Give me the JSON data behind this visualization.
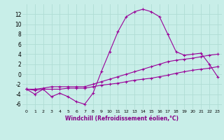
{
  "xlabel": "Windchill (Refroidissement éolien,°C)",
  "bg_color": "#c8eee8",
  "grid_color": "#b0ddd4",
  "line_color": "#990099",
  "hours": [
    0,
    1,
    2,
    3,
    4,
    5,
    6,
    7,
    8,
    9,
    10,
    11,
    12,
    13,
    14,
    15,
    16,
    17,
    18,
    19,
    20,
    21,
    22,
    23
  ],
  "curve1": [
    -3,
    -4,
    -3,
    -4.5,
    -3.8,
    -4.5,
    -5.5,
    -6.0,
    -3.8,
    0.5,
    4.5,
    8.5,
    11.5,
    12.5,
    13.0,
    12.5,
    11.5,
    8.0,
    4.5,
    3.8,
    4.0,
    4.2,
    2.0,
    -0.5
  ],
  "curve2": [
    -3,
    -3.0,
    -2.8,
    -2.5,
    -2.5,
    -2.5,
    -2.5,
    -2.5,
    -2.0,
    -1.5,
    -1.0,
    -0.5,
    0.0,
    0.5,
    1.0,
    1.5,
    2.0,
    2.5,
    2.8,
    3.0,
    3.2,
    3.5,
    3.8,
    4.0
  ],
  "curve3": [
    -3,
    -3.2,
    -3.0,
    -3.0,
    -3.0,
    -2.8,
    -2.8,
    -2.8,
    -2.5,
    -2.2,
    -2.0,
    -1.8,
    -1.5,
    -1.2,
    -1.0,
    -0.8,
    -0.5,
    -0.2,
    0.2,
    0.5,
    0.8,
    1.0,
    1.2,
    1.5
  ],
  "ylim": [
    -7,
    14
  ],
  "yticks": [
    -6,
    -4,
    -2,
    0,
    2,
    4,
    6,
    8,
    10,
    12
  ],
  "xlabel_color": "#880088",
  "xlabel_fontsize": 5.5
}
